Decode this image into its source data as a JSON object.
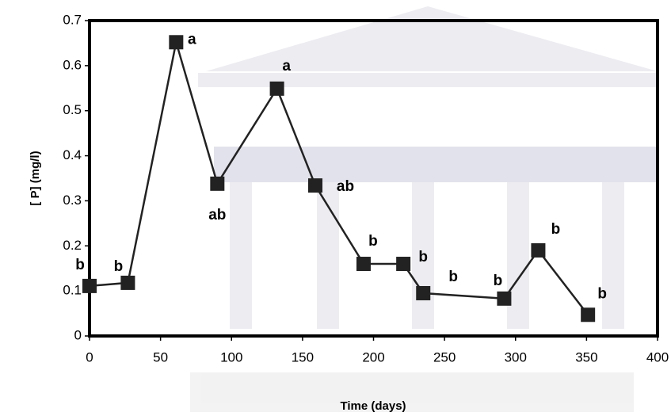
{
  "chart_data": {
    "type": "line",
    "x_label": "Time (days)",
    "y_label": "[ P] (mg/l)",
    "x": [
      0,
      27,
      61,
      90,
      132,
      159,
      193,
      221,
      235,
      292,
      316,
      351
    ],
    "series": [
      {
        "color": "#222222",
        "values": [
          0.111,
          0.118,
          0.652,
          0.338,
          0.549,
          0.334,
          0.16,
          0.16,
          0.095,
          0.083,
          0.19,
          0.047
        ],
        "annotations": [
          "b",
          "b",
          "a",
          "ab",
          "a",
          "ab",
          "b",
          "b",
          "b",
          "b",
          "b",
          "b"
        ]
      }
    ],
    "xlim": [
      0,
      400
    ],
    "xticks": [
      0,
      50,
      100,
      150,
      200,
      250,
      300,
      350,
      400
    ],
    "ylim": [
      0,
      0.7
    ],
    "yticks": [
      0,
      0.1,
      0.2,
      0.3,
      0.4,
      0.5,
      0.6,
      0.7
    ]
  }
}
